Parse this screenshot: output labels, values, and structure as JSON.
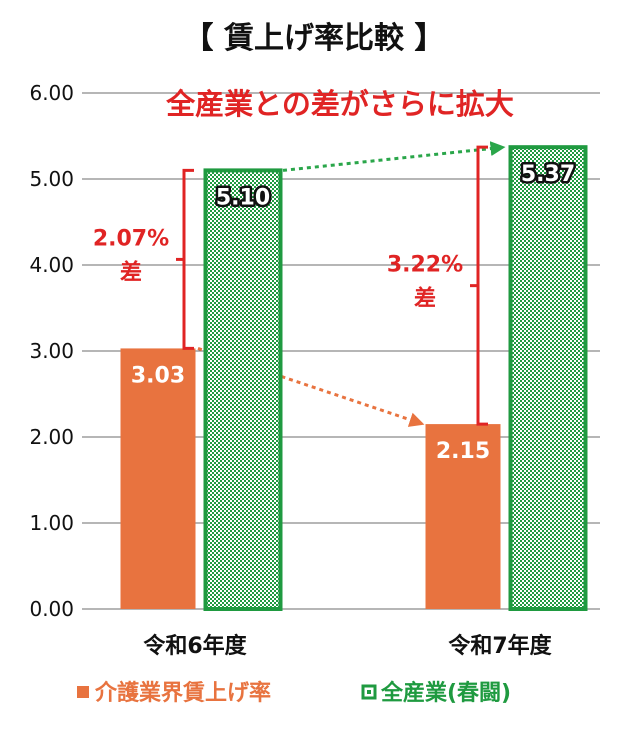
{
  "chart_data": {
    "type": "bar",
    "title": "【 賃上げ率比較 】",
    "headline": "全産業との差がさらに拡大",
    "categories": [
      "令和6年度",
      "令和7年度"
    ],
    "series": [
      {
        "name": "介護業界賃上げ率",
        "values": [
          3.03,
          2.15
        ],
        "labels": [
          "3.03",
          "2.15"
        ],
        "color": "#e8733f"
      },
      {
        "name": "全産業(春闘)",
        "values": [
          5.1,
          5.37
        ],
        "labels": [
          "5.10",
          "5.37"
        ],
        "color": "#1f9a40"
      }
    ],
    "ylim": [
      0,
      6
    ],
    "yticks": [
      "0.00",
      "1.00",
      "2.00",
      "3.00",
      "4.00",
      "5.00",
      "6.00"
    ],
    "grid": true,
    "legend_position": "bottom",
    "annotations": [
      {
        "category": 0,
        "pct": "2.07%",
        "label": "差"
      },
      {
        "category": 1,
        "pct": "3.22%",
        "label": "差"
      }
    ],
    "accent_color": "#e02424"
  }
}
